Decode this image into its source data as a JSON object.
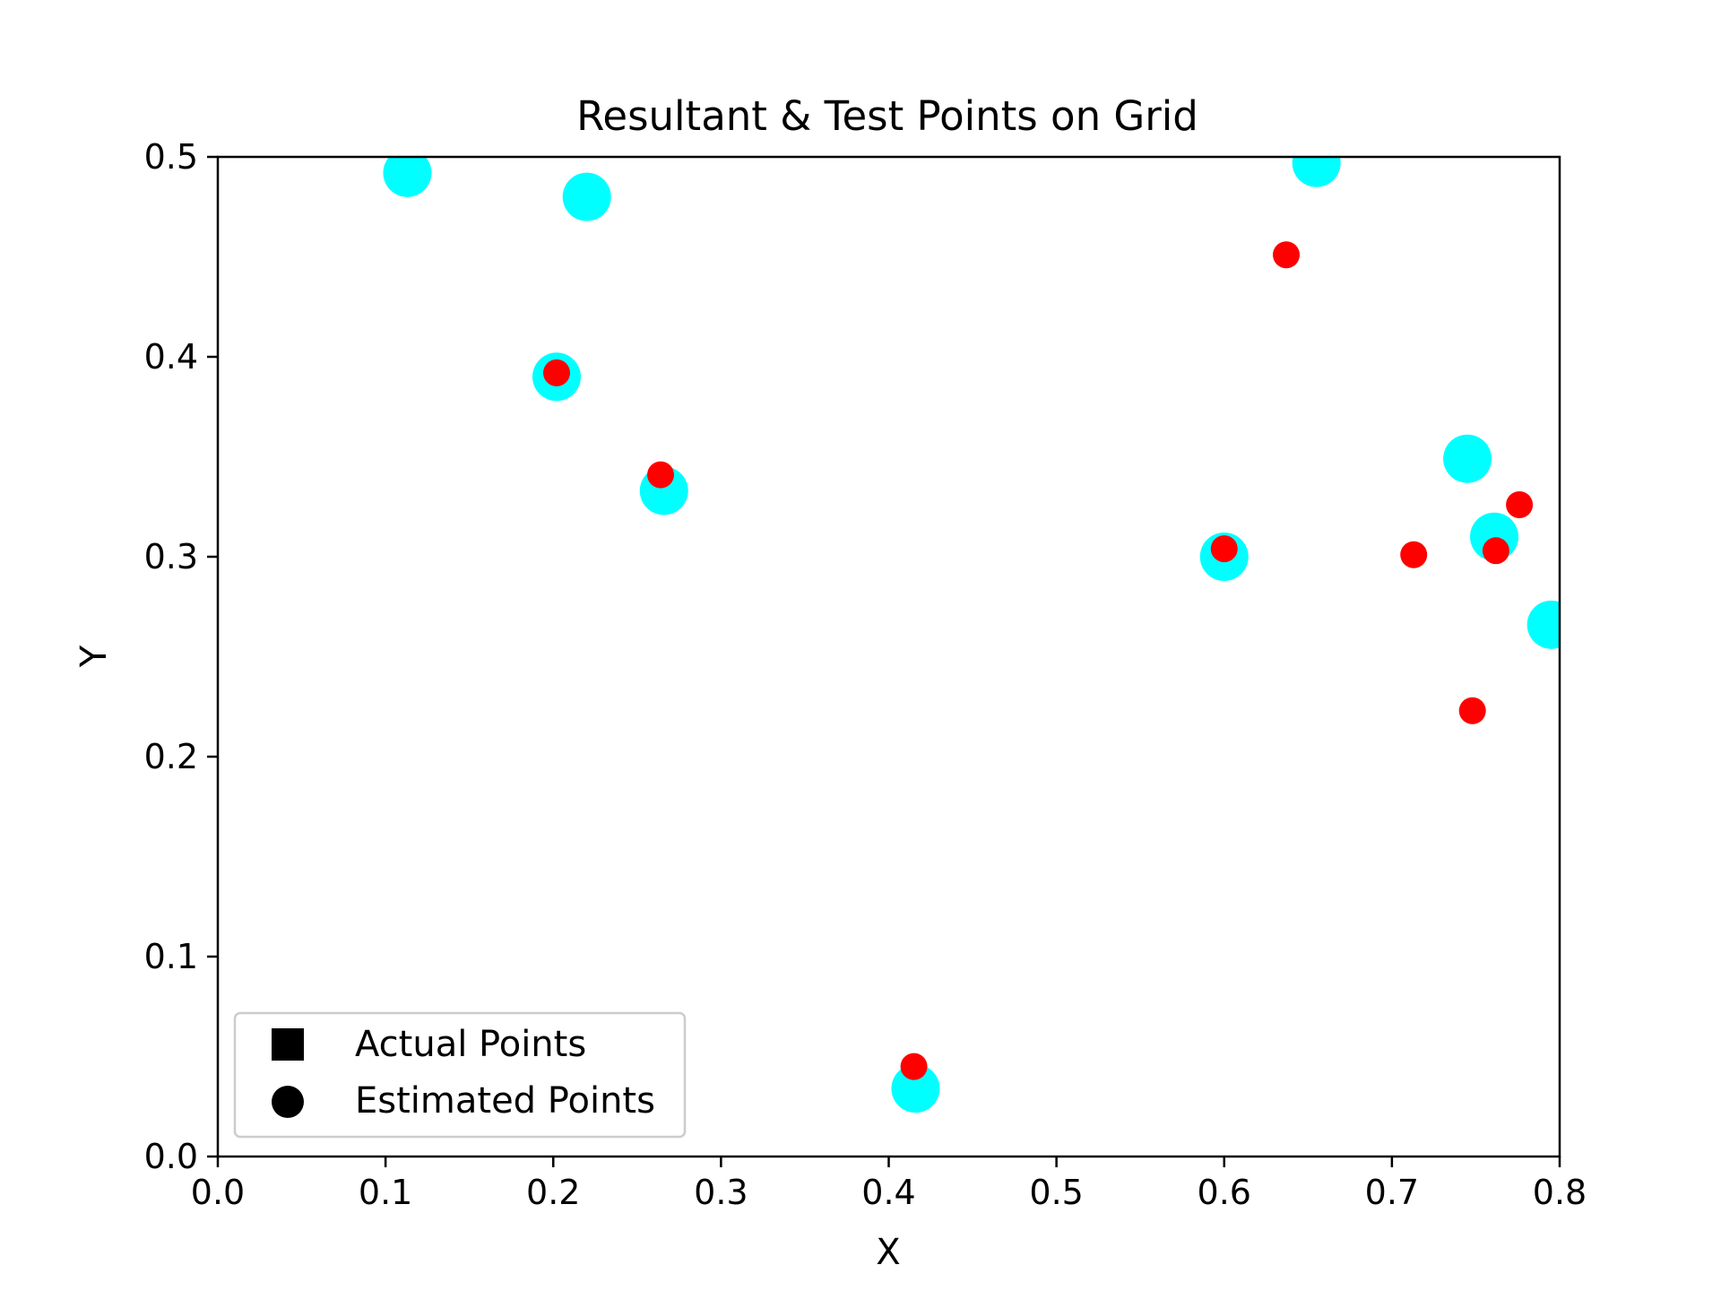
{
  "chart_data": {
    "type": "scatter",
    "title": "Resultant & Test Points on Grid",
    "xlabel": "X",
    "ylabel": "Y",
    "xlim": [
      0.0,
      0.8
    ],
    "ylim": [
      0.0,
      0.5
    ],
    "xticks": [
      "0.0",
      "0.1",
      "0.2",
      "0.3",
      "0.4",
      "0.5",
      "0.6",
      "0.7",
      "0.8"
    ],
    "yticks": [
      "0.0",
      "0.1",
      "0.2",
      "0.3",
      "0.4",
      "0.5"
    ],
    "grid": false,
    "legend_position": "lower-left",
    "legend": [
      {
        "label": "Actual Points",
        "marker": "square",
        "color": "#000000"
      },
      {
        "label": "Estimated Points",
        "marker": "circle",
        "color": "#000000"
      }
    ],
    "series": [
      {
        "marker": "circle-large",
        "color": "#00ffff",
        "points": [
          {
            "x": 0.113,
            "y": 0.492
          },
          {
            "x": 0.22,
            "y": 0.48
          },
          {
            "x": 0.202,
            "y": 0.39
          },
          {
            "x": 0.266,
            "y": 0.333
          },
          {
            "x": 0.416,
            "y": 0.034
          },
          {
            "x": 0.6,
            "y": 0.3
          },
          {
            "x": 0.655,
            "y": 0.497
          },
          {
            "x": 0.745,
            "y": 0.349
          },
          {
            "x": 0.761,
            "y": 0.31
          },
          {
            "x": 0.795,
            "y": 0.266
          }
        ]
      },
      {
        "marker": "circle-small",
        "color": "#ff0000",
        "points": [
          {
            "x": 0.202,
            "y": 0.392
          },
          {
            "x": 0.264,
            "y": 0.341
          },
          {
            "x": 0.415,
            "y": 0.045
          },
          {
            "x": 0.6,
            "y": 0.304
          },
          {
            "x": 0.637,
            "y": 0.451
          },
          {
            "x": 0.713,
            "y": 0.301
          },
          {
            "x": 0.748,
            "y": 0.223
          },
          {
            "x": 0.762,
            "y": 0.303
          },
          {
            "x": 0.776,
            "y": 0.326
          }
        ]
      }
    ]
  }
}
